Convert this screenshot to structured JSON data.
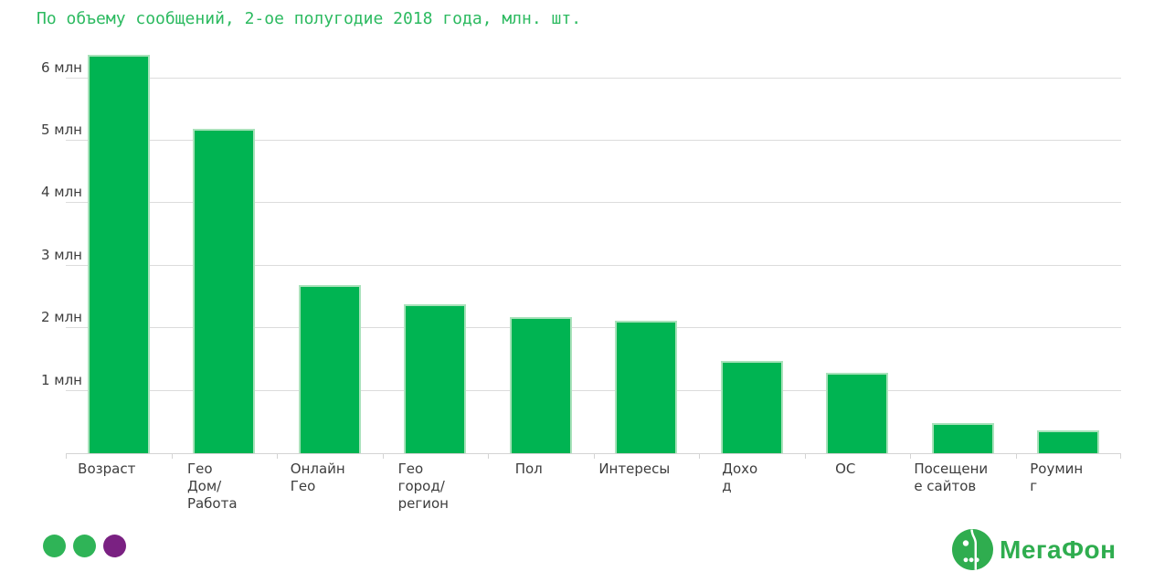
{
  "title": "По объему сообщений, 2-ое полугодие 2018 года, млн. шт.",
  "chart_data": {
    "type": "bar",
    "title": "По объему сообщений, 2-ое полугодие 2018 года, млн. шт.",
    "unit": "млн шт.",
    "categories": [
      "Возраст",
      "Гео Дом/Работа",
      "Онлайн Гео",
      "Гео город/регион",
      "Пол",
      "Интересы",
      "Доход",
      "ОС",
      "Посещение сайтов",
      "Роуминг"
    ],
    "values": [
      6.37,
      5.19,
      2.69,
      2.38,
      2.18,
      2.12,
      1.48,
      1.29,
      0.48,
      0.37
    ],
    "x_tick_display_lines": [
      [
        "Возраст"
      ],
      [
        "Гео",
        "Дом/",
        "Работа"
      ],
      [
        "Онлайн",
        "Гео"
      ],
      [
        "Гео",
        "город/",
        "регион"
      ],
      [
        "Пол"
      ],
      [
        "Интересы"
      ],
      [
        "Дохо",
        "д"
      ],
      [
        "ОС"
      ],
      [
        "Посещени",
        "е сайтов"
      ],
      [
        "Роумин",
        "г"
      ]
    ],
    "yticks": [
      {
        "value": 1,
        "label": "1 млн"
      },
      {
        "value": 2,
        "label": "2 млн"
      },
      {
        "value": 3,
        "label": "3 млн"
      },
      {
        "value": 4,
        "label": "4 млн"
      },
      {
        "value": 5,
        "label": "5 млн"
      },
      {
        "value": 6,
        "label": "6 млн"
      }
    ],
    "ylim": [
      0,
      6.5
    ],
    "xlabel": "",
    "ylabel": "",
    "grid": "horizontal",
    "legend": "none",
    "bar_color": "#00b452"
  },
  "footer": {
    "pagination_dots": [
      {
        "label": "slide-1",
        "color": "#2fb457",
        "active": false
      },
      {
        "label": "slide-2",
        "color": "#2fb457",
        "active": false
      },
      {
        "label": "slide-3",
        "color": "#7a2182",
        "active": true
      }
    ],
    "logo": {
      "icon": "megafon-logo-icon",
      "text": "МегаФон",
      "color": "#2fad4f"
    }
  },
  "colors": {
    "title_green": "#2cba60",
    "bar_green": "#00b452",
    "bar_edge": "#a9e2bb",
    "gridline": "#dcdcdc",
    "axis_line": "#d4d4d4",
    "axis_text": "#3d3d3d",
    "dot_green": "#2fb457",
    "dot_purple": "#7a2182",
    "brand_green": "#2fad4f"
  }
}
